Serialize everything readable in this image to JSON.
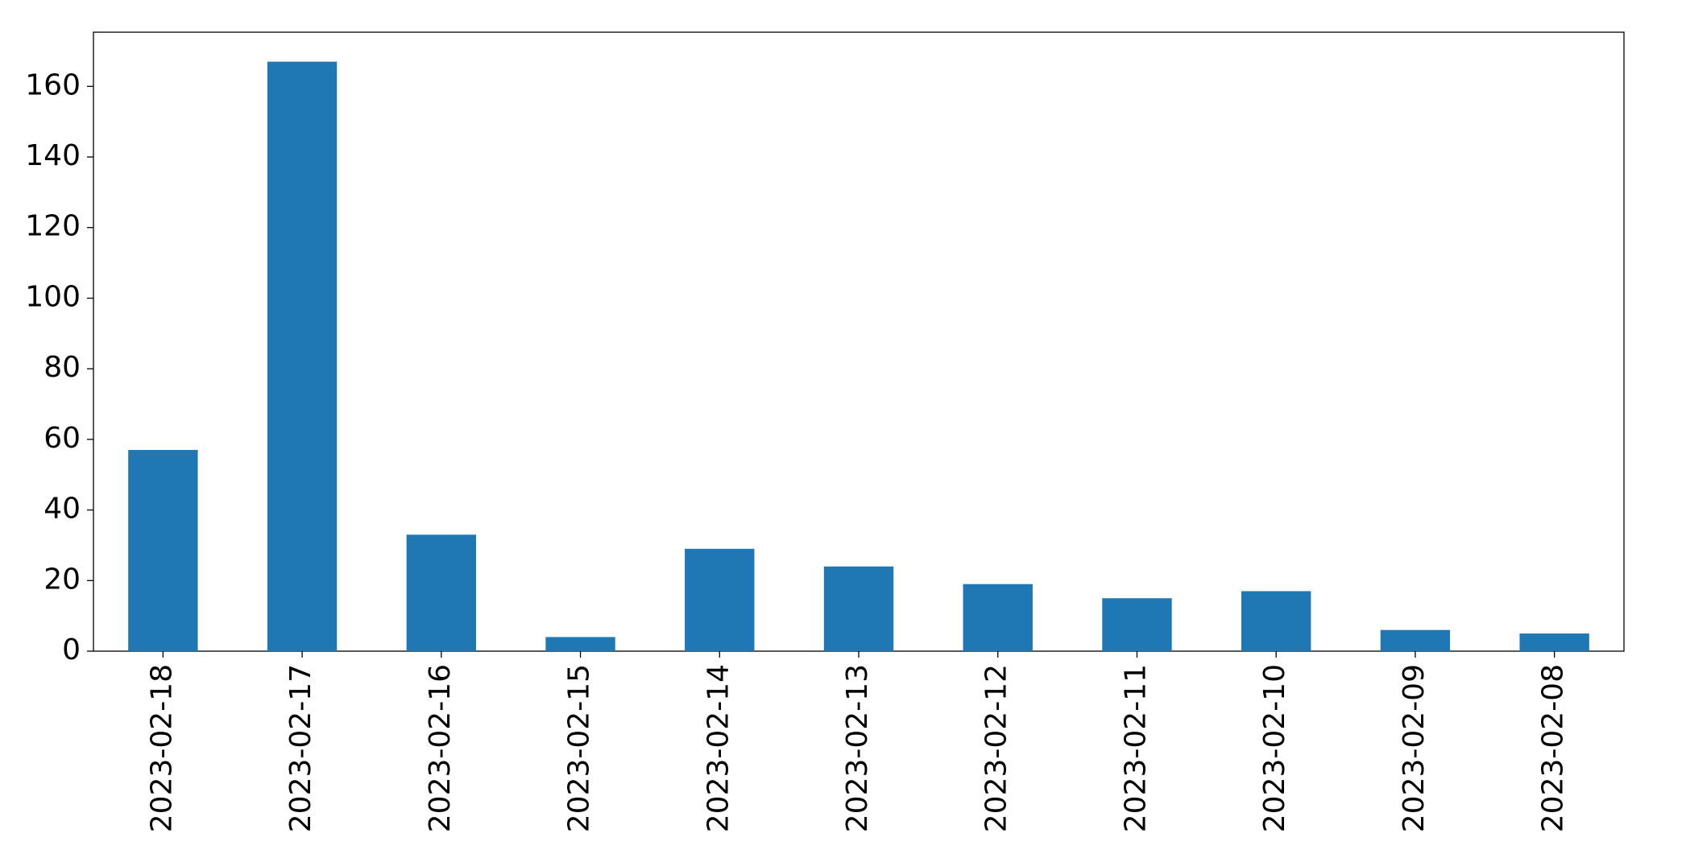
{
  "chart_data": {
    "type": "bar",
    "categories": [
      "2023-02-18",
      "2023-02-17",
      "2023-02-16",
      "2023-02-15",
      "2023-02-14",
      "2023-02-13",
      "2023-02-12",
      "2023-02-11",
      "2023-02-10",
      "2023-02-09",
      "2023-02-08"
    ],
    "values": [
      57,
      167,
      33,
      4,
      29,
      24,
      19,
      15,
      17,
      6,
      5
    ],
    "color": "#1f77b4",
    "ylim": [
      0,
      175.35
    ],
    "yticks": [
      0,
      20,
      40,
      60,
      80,
      100,
      120,
      140,
      160
    ],
    "grid": false
  }
}
